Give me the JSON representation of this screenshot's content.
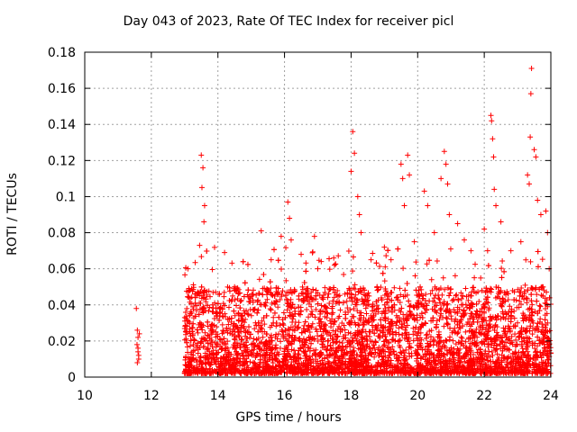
{
  "chart_data": {
    "type": "scatter",
    "title": "Day 043 of 2023, Rate Of TEC Index for receiver picl",
    "xlabel": "GPS time / hours",
    "ylabel": "ROTI / TECUs",
    "xlim": [
      10,
      24
    ],
    "ylim": [
      0,
      0.18
    ],
    "xticks": [
      10,
      12,
      14,
      16,
      18,
      20,
      22,
      24
    ],
    "yticks": [
      0,
      0.02,
      0.04,
      0.06,
      0.08,
      0.1,
      0.12,
      0.14,
      0.16,
      0.18
    ],
    "ytick_labels": [
      "0",
      "0.02",
      "0.04",
      "0.06",
      "0.08",
      "0.1",
      "0.12",
      "0.14",
      "0.16",
      "0.18"
    ],
    "grid": true,
    "marker": "+",
    "series": [
      {
        "name": "ROTI",
        "color": "#ff0000",
        "points": [
          [
            11.55,
            0.038
          ],
          [
            11.58,
            0.026
          ],
          [
            11.6,
            0.022
          ],
          [
            11.6,
            0.016
          ],
          [
            11.62,
            0.012
          ],
          [
            11.58,
            0.008
          ],
          [
            11.62,
            0.01
          ],
          [
            11.64,
            0.024
          ],
          [
            11.6,
            0.014
          ],
          [
            11.57,
            0.018
          ],
          [
            13.1,
            0.06
          ],
          [
            13.5,
            0.123
          ],
          [
            13.55,
            0.116
          ],
          [
            13.52,
            0.105
          ],
          [
            13.6,
            0.095
          ],
          [
            13.58,
            0.086
          ],
          [
            13.45,
            0.073
          ],
          [
            14.2,
            0.069
          ],
          [
            14.5,
            0.05
          ],
          [
            15.3,
            0.081
          ],
          [
            15.6,
            0.065
          ],
          [
            15.9,
            0.078
          ],
          [
            16.1,
            0.097
          ],
          [
            16.15,
            0.088
          ],
          [
            16.2,
            0.076
          ],
          [
            16.5,
            0.068
          ],
          [
            16.9,
            0.078
          ],
          [
            17.0,
            0.06
          ],
          [
            17.5,
            0.062
          ],
          [
            18.0,
            0.114
          ],
          [
            18.05,
            0.136
          ],
          [
            18.1,
            0.124
          ],
          [
            18.2,
            0.1
          ],
          [
            18.25,
            0.09
          ],
          [
            18.3,
            0.08
          ],
          [
            18.6,
            0.065
          ],
          [
            19.0,
            0.072
          ],
          [
            19.2,
            0.065
          ],
          [
            19.5,
            0.118
          ],
          [
            19.55,
            0.11
          ],
          [
            19.7,
            0.123
          ],
          [
            19.75,
            0.112
          ],
          [
            19.6,
            0.095
          ],
          [
            19.9,
            0.075
          ],
          [
            20.2,
            0.103
          ],
          [
            20.3,
            0.095
          ],
          [
            20.5,
            0.08
          ],
          [
            20.7,
            0.11
          ],
          [
            20.8,
            0.125
          ],
          [
            20.85,
            0.118
          ],
          [
            20.9,
            0.107
          ],
          [
            20.95,
            0.09
          ],
          [
            21.2,
            0.085
          ],
          [
            21.4,
            0.076
          ],
          [
            21.6,
            0.07
          ],
          [
            22.0,
            0.082
          ],
          [
            22.1,
            0.07
          ],
          [
            22.2,
            0.145
          ],
          [
            22.22,
            0.142
          ],
          [
            22.25,
            0.132
          ],
          [
            22.28,
            0.122
          ],
          [
            22.3,
            0.104
          ],
          [
            22.35,
            0.095
          ],
          [
            22.5,
            0.086
          ],
          [
            22.8,
            0.07
          ],
          [
            23.1,
            0.075
          ],
          [
            23.3,
            0.112
          ],
          [
            23.35,
            0.107
          ],
          [
            23.38,
            0.133
          ],
          [
            23.4,
            0.157
          ],
          [
            23.42,
            0.171
          ],
          [
            23.5,
            0.126
          ],
          [
            23.55,
            0.122
          ],
          [
            23.6,
            0.098
          ],
          [
            23.7,
            0.09
          ],
          [
            23.85,
            0.092
          ],
          [
            23.9,
            0.08
          ],
          [
            23.95,
            0.06
          ]
        ],
        "dense_band": {
          "note": "dense cloud of points from 13.0 to 24.0 hours, mostly between 0.002 and 0.05 TECU, densest below 0.03",
          "x_range": [
            13.0,
            24.0
          ],
          "y_typical_range": [
            0.002,
            0.05
          ]
        }
      }
    ]
  }
}
